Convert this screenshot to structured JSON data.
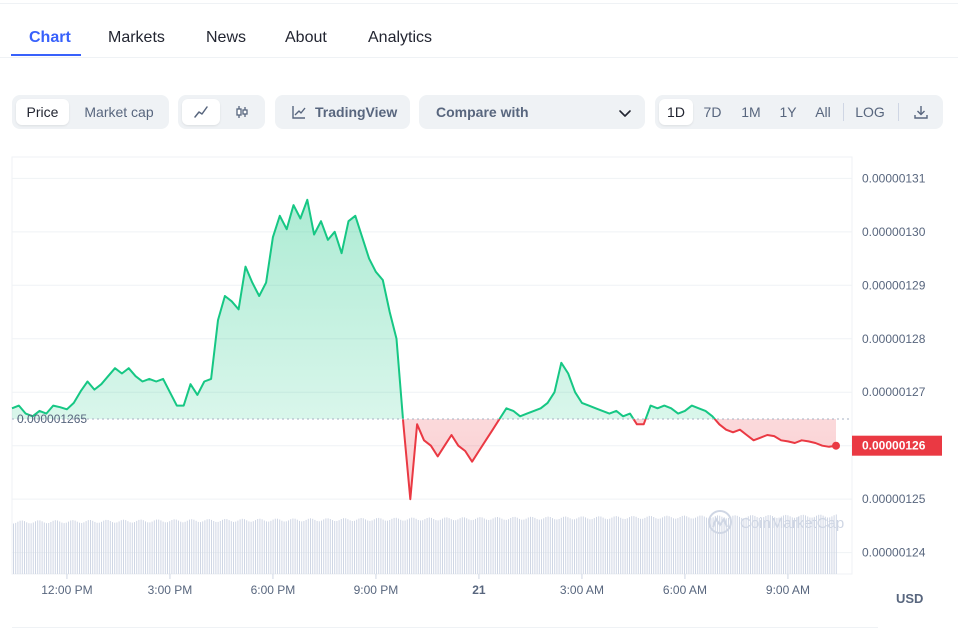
{
  "tabs": [
    {
      "label": "Chart",
      "active": true
    },
    {
      "label": "Markets"
    },
    {
      "label": "News"
    },
    {
      "label": "About"
    },
    {
      "label": "Analytics"
    }
  ],
  "toolbar": {
    "data_toggle": [
      "Price",
      "Market cap"
    ],
    "data_selected": "Price",
    "chart_style_icons": [
      "line-chart-icon",
      "candlestick-icon"
    ],
    "tradingview_label": "TradingView",
    "compare_label": "Compare with",
    "ranges": [
      "1D",
      "7D",
      "1M",
      "1Y",
      "All"
    ],
    "range_selected": "1D",
    "log_label": "LOG",
    "download_icon": "download-icon"
  },
  "chart_data": {
    "type": "area",
    "x_ticks": [
      "12:00 PM",
      "3:00 PM",
      "6:00 PM",
      "9:00 PM",
      "21",
      "3:00 AM",
      "6:00 AM",
      "9:00 AM"
    ],
    "y_ticks": [
      "0.00000131",
      "0.00000130",
      "0.00000129",
      "0.00000128",
      "0.00000127",
      "0.00000126",
      "0.00000125",
      "0.00000124"
    ],
    "ylim": [
      1.236e-06,
      1.314e-06
    ],
    "y_unit": "USD",
    "reference_price": 1.265e-06,
    "reference_label": "0.000001265",
    "current_price_label": "0.00000126",
    "up_color": "#16c784",
    "down_color": "#ea3943",
    "watermark": "CoinMarketCap",
    "series": [
      {
        "x_hours": [
          0,
          0.2,
          0.4,
          0.6,
          0.8,
          1,
          1.2,
          1.4,
          1.6,
          1.8,
          2,
          2.2,
          2.4,
          2.6,
          2.8,
          3,
          3.2,
          3.4,
          3.6,
          3.8,
          4,
          4.2,
          4.4,
          4.6,
          4.8,
          5,
          5.2,
          5.4,
          5.6,
          5.8,
          6,
          6.2,
          6.4,
          6.6,
          6.8,
          7,
          7.2,
          7.4,
          7.6,
          7.8,
          8,
          8.2,
          8.4,
          8.6,
          8.8,
          9,
          9.2,
          9.4,
          9.6,
          9.8,
          10,
          10.2,
          10.4,
          10.6,
          10.8,
          11,
          11.2,
          11.4,
          11.6,
          11.8,
          12,
          12.2,
          12.4,
          12.6,
          12.8,
          13,
          13.2,
          13.4,
          13.6,
          13.8,
          14,
          14.2,
          14.4,
          14.6,
          14.8,
          15,
          15.2,
          15.4,
          15.6,
          15.8,
          16,
          16.2,
          16.4,
          16.6,
          16.8,
          17,
          17.2,
          17.4,
          17.6,
          17.8,
          18,
          18.2,
          18.4,
          18.6,
          18.8,
          19,
          19.2,
          19.4,
          19.6,
          19.8,
          20,
          20.2,
          20.4,
          20.6,
          20.8,
          21,
          21.2,
          21.4,
          21.6,
          21.8,
          22,
          22.2,
          22.4,
          22.6,
          22.8,
          23,
          23.2,
          23.4,
          23.6,
          23.8,
          24.0
        ],
        "values": [
          1.267e-06,
          1.2675e-06,
          1.266e-06,
          1.2655e-06,
          1.2665e-06,
          1.266e-06,
          1.2675e-06,
          1.2672e-06,
          1.2668e-06,
          1.268e-06,
          1.2702e-06,
          1.272e-06,
          1.2705e-06,
          1.2715e-06,
          1.273e-06,
          1.2745e-06,
          1.2735e-06,
          1.2745e-06,
          1.273e-06,
          1.272e-06,
          1.2725e-06,
          1.272e-06,
          1.2725e-06,
          1.27e-06,
          1.2675e-06,
          1.2675e-06,
          1.2715e-06,
          1.2695e-06,
          1.272e-06,
          1.2725e-06,
          1.2835e-06,
          1.288e-06,
          1.287e-06,
          1.2855e-06,
          1.2935e-06,
          1.2905e-06,
          1.288e-06,
          1.2905e-06,
          1.299e-06,
          1.303e-06,
          1.3005e-06,
          1.305e-06,
          1.3025e-06,
          1.306e-06,
          1.2995e-06,
          1.302e-06,
          1.2985e-06,
          1.3e-06,
          1.296e-06,
          1.302e-06,
          1.303e-06,
          1.299e-06,
          1.295e-06,
          1.2925e-06,
          1.291e-06,
          1.285e-06,
          1.28e-06,
          1.264e-06,
          1.25e-06,
          1.264e-06,
          1.261e-06,
          1.26e-06,
          1.258e-06,
          1.26e-06,
          1.262e-06,
          1.26e-06,
          1.259e-06,
          1.257e-06,
          1.259e-06,
          1.261e-06,
          1.263e-06,
          1.265e-06,
          1.267e-06,
          1.2665e-06,
          1.2655e-06,
          1.266e-06,
          1.2665e-06,
          1.267e-06,
          1.268e-06,
          1.27e-06,
          1.2755e-06,
          1.2735e-06,
          1.27e-06,
          1.268e-06,
          1.2675e-06,
          1.267e-06,
          1.2665e-06,
          1.266e-06,
          1.2665e-06,
          1.2655e-06,
          1.266e-06,
          1.264e-06,
          1.264e-06,
          1.2675e-06,
          1.267e-06,
          1.2675e-06,
          1.267e-06,
          1.266e-06,
          1.2665e-06,
          1.2675e-06,
          1.267e-06,
          1.2665e-06,
          1.2655e-06,
          1.264e-06,
          1.263e-06,
          1.2625e-06,
          1.263e-06,
          1.262e-06,
          1.261e-06,
          1.2615e-06,
          1.262e-06,
          1.2618e-06,
          1.261e-06,
          1.2608e-06,
          1.2605e-06,
          1.261e-06,
          1.2608e-06,
          1.2605e-06,
          1.26e-06,
          1.2598e-06,
          1.26e-06
        ]
      }
    ]
  }
}
